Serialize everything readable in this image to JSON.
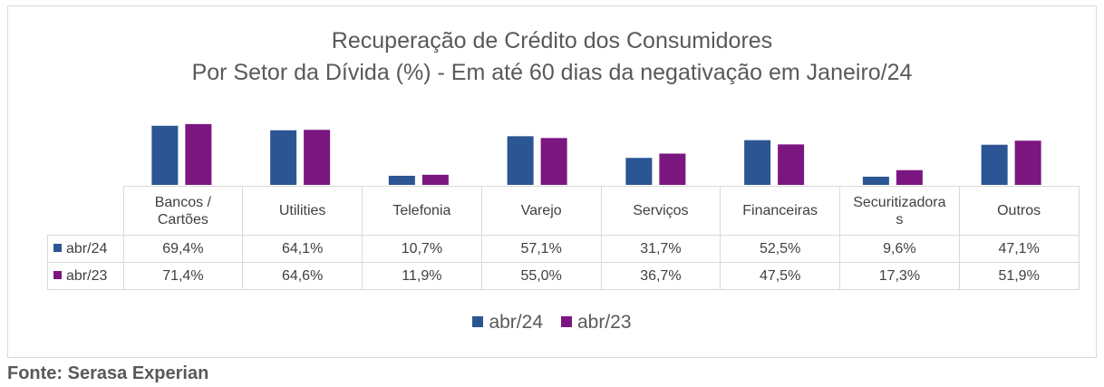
{
  "chart_data": {
    "type": "bar",
    "title": "Recuperação de Crédito dos Consumidores",
    "subtitle": "Por Setor da Dívida (%) - Em até 60 dias da negativação em Janeiro/24",
    "categories": [
      "Bancos / Cartões",
      "Utilities",
      "Telefonia",
      "Varejo",
      "Serviços",
      "Financeiras",
      "Securitizadoras",
      "Outros"
    ],
    "category_labels": [
      [
        "Bancos /",
        "Cartões"
      ],
      [
        "Utilities"
      ],
      [
        "Telefonia"
      ],
      [
        "Varejo"
      ],
      [
        "Serviços"
      ],
      [
        "Financeiras"
      ],
      [
        "Securitizadora",
        "s"
      ],
      [
        "Outros"
      ]
    ],
    "series": [
      {
        "name": "abr/24",
        "color": "#2b5593",
        "values": [
          69.4,
          64.1,
          10.7,
          57.1,
          31.7,
          52.5,
          9.6,
          47.1
        ],
        "labels": [
          "69,4%",
          "64,1%",
          "10,7%",
          "57,1%",
          "31,7%",
          "52,5%",
          "9,6%",
          "47,1%"
        ]
      },
      {
        "name": "abr/23",
        "color": "#7b1680",
        "values": [
          71.4,
          64.6,
          11.9,
          55.0,
          36.7,
          47.5,
          17.3,
          51.9
        ],
        "labels": [
          "71,4%",
          "64,6%",
          "11,9%",
          "55,0%",
          "36,7%",
          "47,5%",
          "17,3%",
          "51,9%"
        ]
      }
    ],
    "ylim": [
      0,
      100
    ],
    "grid": false,
    "legend": "bottom"
  },
  "source": "Fonte: Serasa Experian"
}
